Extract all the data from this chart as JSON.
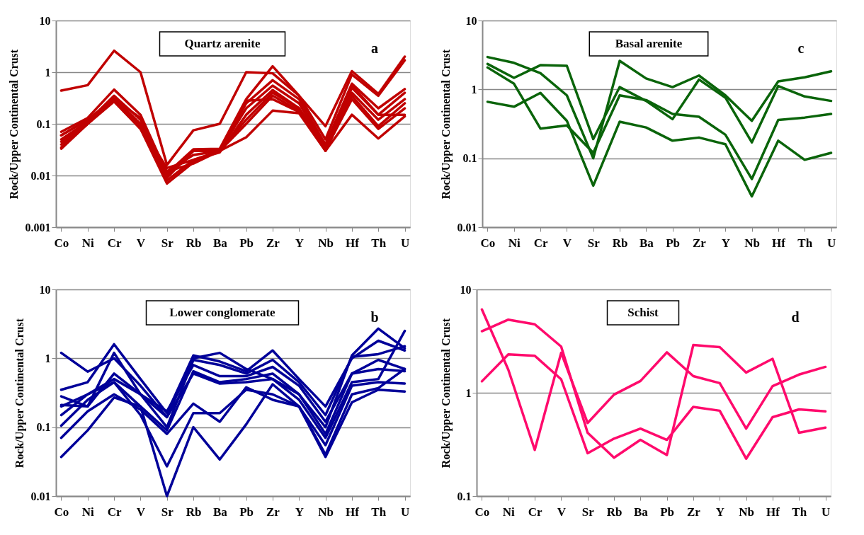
{
  "chart_data": [
    {
      "type": "line",
      "title": "Quartz arenite",
      "annotations": [
        "a"
      ],
      "ylabel": "Rock/Upper Continental Crust",
      "categories": [
        "Co",
        "Ni",
        "Cr",
        "V",
        "Sr",
        "Rb",
        "Ba",
        "Pb",
        "Zr",
        "Y",
        "Nb",
        "Hf",
        "Th",
        "U"
      ],
      "log": true,
      "grid": "y",
      "ylim": [
        0.001,
        10
      ],
      "yticks": [
        0.001,
        0.01,
        0.1,
        1,
        10
      ],
      "series": [
        {
          "color": "#c00000",
          "values": [
            0.44,
            0.56,
            2.6,
            1.0,
            0.016,
            0.075,
            0.1,
            1.0,
            0.95,
            0.35,
            0.09,
            1.05,
            0.38,
            2.0
          ]
        },
        {
          "color": "#c00000",
          "values": [
            0.07,
            0.13,
            0.46,
            0.15,
            0.011,
            0.032,
            0.033,
            0.3,
            1.3,
            0.35,
            0.05,
            0.9,
            0.35,
            1.7
          ]
        },
        {
          "color": "#c00000",
          "values": [
            0.06,
            0.12,
            0.3,
            0.13,
            0.009,
            0.03,
            0.03,
            0.25,
            0.7,
            0.3,
            0.04,
            0.6,
            0.2,
            0.47
          ]
        },
        {
          "color": "#c00000",
          "values": [
            0.05,
            0.11,
            0.35,
            0.12,
            0.012,
            0.025,
            0.03,
            0.2,
            0.55,
            0.25,
            0.035,
            0.5,
            0.15,
            0.4
          ]
        },
        {
          "color": "#c00000",
          "values": [
            0.04,
            0.1,
            0.3,
            0.1,
            0.008,
            0.02,
            0.028,
            0.15,
            0.45,
            0.2,
            0.035,
            0.4,
            0.12,
            0.3
          ]
        },
        {
          "color": "#c00000",
          "values": [
            0.035,
            0.1,
            0.28,
            0.08,
            0.007,
            0.018,
            0.03,
            0.12,
            0.4,
            0.2,
            0.03,
            0.35,
            0.09,
            0.25
          ]
        },
        {
          "color": "#c00000",
          "values": [
            0.033,
            0.1,
            0.27,
            0.08,
            0.012,
            0.017,
            0.03,
            0.1,
            0.35,
            0.18,
            0.032,
            0.3,
            0.08,
            0.2
          ]
        },
        {
          "color": "#c00000",
          "values": [
            0.045,
            0.11,
            0.3,
            0.09,
            0.014,
            0.02,
            0.03,
            0.055,
            0.18,
            0.16,
            0.03,
            0.15,
            0.052,
            0.14
          ]
        },
        {
          "color": "#c00000",
          "values": [
            0.06,
            0.12,
            0.31,
            0.1,
            0.01,
            0.03,
            0.03,
            0.28,
            0.3,
            0.17,
            0.04,
            0.55,
            0.15,
            0.15
          ]
        }
      ]
    },
    {
      "type": "line",
      "title": "Basal arenite",
      "annotations": [
        "c"
      ],
      "ylabel": "Rock/Upper Continental Crust",
      "categories": [
        "Co",
        "Ni",
        "Cr",
        "V",
        "Sr",
        "Rb",
        "Ba",
        "Pb",
        "Zr",
        "Y",
        "Nb",
        "Hf",
        "Th",
        "U"
      ],
      "log": true,
      "grid": "y",
      "ylim": [
        0.01,
        10
      ],
      "yticks": [
        0.01,
        0.1,
        1,
        10
      ],
      "series": [
        {
          "color": "#0a640a",
          "values": [
            2.95,
            2.43,
            1.72,
            0.82,
            0.1,
            2.6,
            1.44,
            1.08,
            1.59,
            0.82,
            0.35,
            1.31,
            1.5,
            1.83
          ]
        },
        {
          "color": "#0a640a",
          "values": [
            2.34,
            1.47,
            2.25,
            2.2,
            0.19,
            1.08,
            0.68,
            0.37,
            1.39,
            0.76,
            0.17,
            1.12,
            0.79,
            0.68
          ]
        },
        {
          "color": "#0a640a",
          "values": [
            2.08,
            1.21,
            0.27,
            0.3,
            0.12,
            0.82,
            0.7,
            0.44,
            0.4,
            0.22,
            0.05,
            0.36,
            0.39,
            0.44
          ]
        },
        {
          "color": "#0a640a",
          "values": [
            0.66,
            0.56,
            0.89,
            0.35,
            0.04,
            0.34,
            0.28,
            0.18,
            0.2,
            0.16,
            0.028,
            0.18,
            0.095,
            0.12
          ]
        }
      ]
    },
    {
      "type": "line",
      "title": "Lower conglomerate",
      "annotations": [
        "b"
      ],
      "ylabel": "Rock/Upper Continental Crust",
      "categories": [
        "Co",
        "Ni",
        "Cr",
        "V",
        "Sr",
        "Rb",
        "Ba",
        "Pb",
        "Zr",
        "Y",
        "Nb",
        "Hf",
        "Th",
        "U"
      ],
      "log": true,
      "grid": "y",
      "ylim": [
        0.01,
        10
      ],
      "yticks": [
        0.01,
        0.1,
        1,
        10
      ],
      "series": [
        {
          "color": "#000099",
          "values": [
            1.2,
            0.64,
            1.0,
            0.4,
            0.14,
            1.0,
            1.2,
            0.7,
            0.5,
            0.3,
            0.1,
            1.1,
            2.7,
            1.4
          ]
        },
        {
          "color": "#000099",
          "values": [
            0.35,
            0.45,
            1.6,
            0.5,
            0.16,
            1.1,
            0.9,
            0.65,
            1.3,
            0.5,
            0.2,
            1.0,
            1.8,
            1.3
          ]
        },
        {
          "color": "#000099",
          "values": [
            0.28,
            0.2,
            1.2,
            0.3,
            0.1,
            0.95,
            0.8,
            0.6,
            0.95,
            0.45,
            0.15,
            1.05,
            1.15,
            1.5
          ]
        },
        {
          "color": "#000099",
          "values": [
            0.21,
            0.2,
            0.6,
            0.3,
            0.17,
            0.8,
            0.55,
            0.55,
            0.75,
            0.4,
            0.12,
            0.6,
            0.95,
            0.7
          ]
        },
        {
          "color": "#000099",
          "values": [
            0.2,
            0.3,
            0.45,
            0.2,
            0.09,
            0.65,
            0.45,
            0.5,
            0.6,
            0.3,
            0.08,
            0.6,
            0.7,
            0.65
          ]
        },
        {
          "color": "#000099",
          "values": [
            0.15,
            0.3,
            0.5,
            0.3,
            0.14,
            0.6,
            0.43,
            0.45,
            0.5,
            0.25,
            0.07,
            0.45,
            0.5,
            2.5
          ]
        },
        {
          "color": "#000099",
          "values": [
            0.105,
            0.25,
            0.45,
            0.15,
            0.027,
            0.16,
            0.16,
            0.35,
            0.3,
            0.2,
            0.055,
            0.4,
            0.45,
            0.43
          ]
        },
        {
          "color": "#000099",
          "values": [
            0.07,
            0.17,
            0.3,
            0.18,
            0.08,
            0.22,
            0.12,
            0.38,
            0.25,
            0.2,
            0.04,
            0.3,
            0.37,
            0.7
          ]
        },
        {
          "color": "#000099",
          "values": [
            0.037,
            0.09,
            0.27,
            0.2,
            0.01,
            0.1,
            0.034,
            0.11,
            0.42,
            0.2,
            0.037,
            0.23,
            0.35,
            0.33
          ]
        }
      ]
    },
    {
      "type": "line",
      "title": "Schist",
      "annotations": [
        "d"
      ],
      "ylabel": "Rock/Upper Continental Crust",
      "categories": [
        "Co",
        "Ni",
        "Cr",
        "V",
        "Sr",
        "Rb",
        "Ba",
        "Pb",
        "Zr",
        "Y",
        "Nb",
        "Hf",
        "Th",
        "U"
      ],
      "log": true,
      "grid": "y",
      "ylim": [
        0.1,
        10
      ],
      "yticks": [
        0.1,
        1,
        10
      ],
      "series": [
        {
          "color": "#ff0a6c",
          "values": [
            6.4,
            1.67,
            0.28,
            2.44,
            0.51,
            0.96,
            1.3,
            2.46,
            1.45,
            1.24,
            0.45,
            1.16,
            1.5,
            1.78
          ]
        },
        {
          "color": "#ff0a6c",
          "values": [
            3.94,
            5.1,
            4.6,
            2.8,
            0.41,
            0.235,
            0.35,
            0.25,
            2.9,
            2.77,
            1.57,
            2.13,
            0.41,
            0.46
          ]
        },
        {
          "color": "#ff0a6c",
          "values": [
            1.29,
            2.35,
            2.28,
            1.35,
            0.26,
            0.36,
            0.45,
            0.35,
            0.73,
            0.67,
            0.23,
            0.58,
            0.69,
            0.66
          ]
        }
      ]
    }
  ]
}
